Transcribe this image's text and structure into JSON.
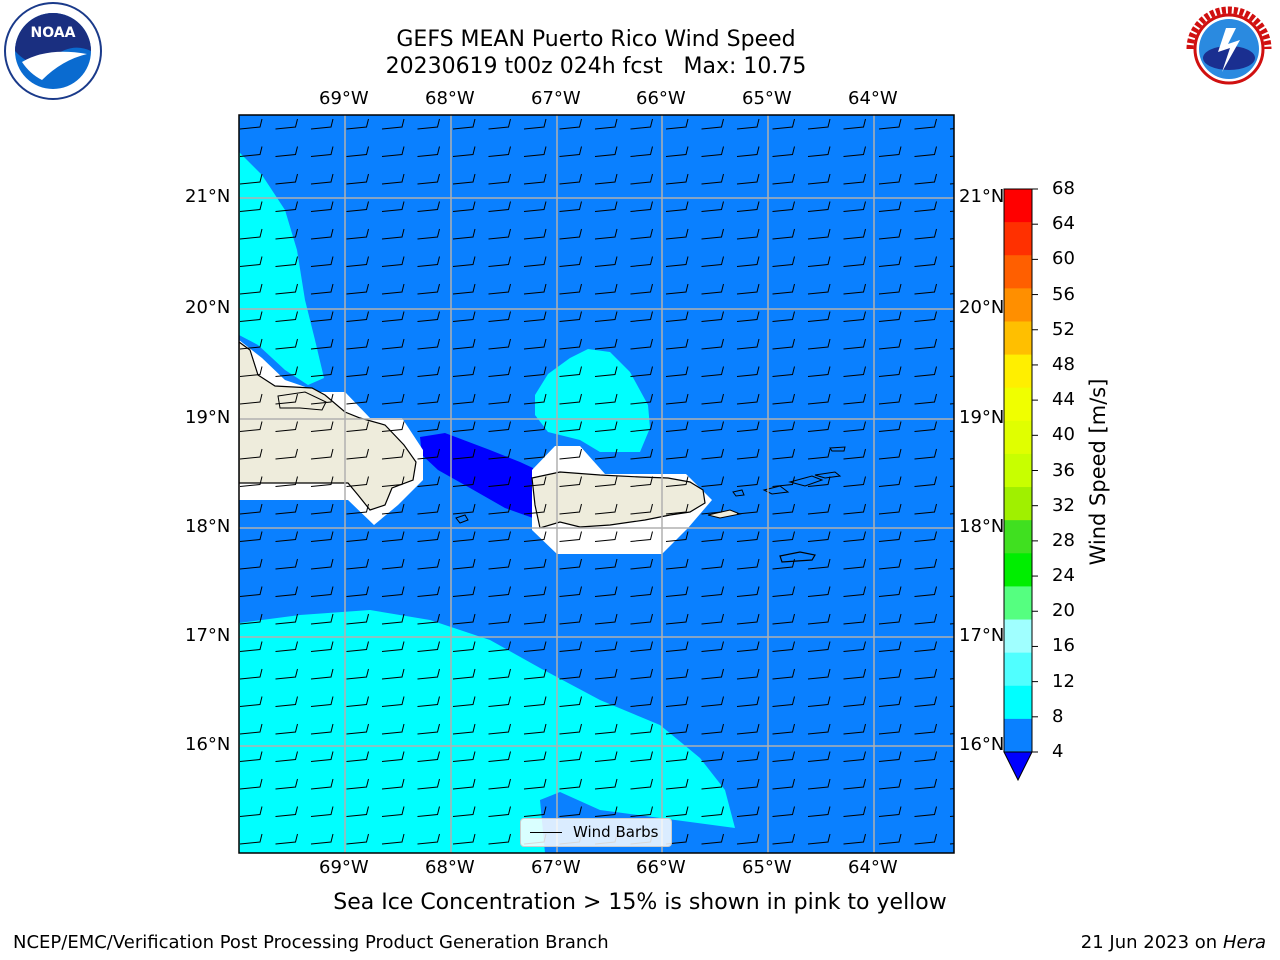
{
  "title": {
    "line1": "GEFS MEAN Puerto Rico Wind Speed",
    "line2": "20230619 t00z 024h fcst   Max: 10.75"
  },
  "logos": {
    "left": {
      "name": "noaa-logo",
      "text": "NOAA"
    },
    "right": {
      "name": "nws-logo",
      "text": "NATIONAL WEATHER SERVICE"
    }
  },
  "map": {
    "lon_labels": [
      "69°W",
      "68°W",
      "67°W",
      "66°W",
      "65°W",
      "64°W"
    ],
    "lat_labels": [
      "21°N",
      "20°N",
      "19°N",
      "18°N",
      "17°N",
      "16°N"
    ],
    "legend_label": "Wind Barbs",
    "colors": {
      "water_4_8": "#0a80ff",
      "water_8_12": "#00ffff",
      "water_lt_4": "#0000ff",
      "land": "#eeecdc",
      "masked": "#ffffff",
      "grid": "#b0b0b0"
    }
  },
  "colorbar": {
    "label": "Wind Speed [m/s]",
    "ticks": [
      "68",
      "64",
      "60",
      "56",
      "52",
      "48",
      "44",
      "40",
      "36",
      "32",
      "28",
      "24",
      "20",
      "16",
      "12",
      "8",
      "4"
    ],
    "colors": [
      "#ff0000",
      "#ff3000",
      "#ff5f00",
      "#ff8f00",
      "#ffbf00",
      "#ffef00",
      "#f0ff00",
      "#e0ff00",
      "#c8ff00",
      "#a0f000",
      "#40e020",
      "#00ee00",
      "#55ff80",
      "#a0ffff",
      "#50ffff",
      "#00ffff",
      "#0a80ff"
    ],
    "extend_color": "#0000ff"
  },
  "sea_ice_note": "Sea Ice Concentration > 15% is shown in pink to yellow",
  "footer": {
    "left": "NCEP/EMC/Verification Post Processing Product Generation Branch",
    "right_date": "21 Jun 2023 on",
    "right_host": "Hera"
  }
}
